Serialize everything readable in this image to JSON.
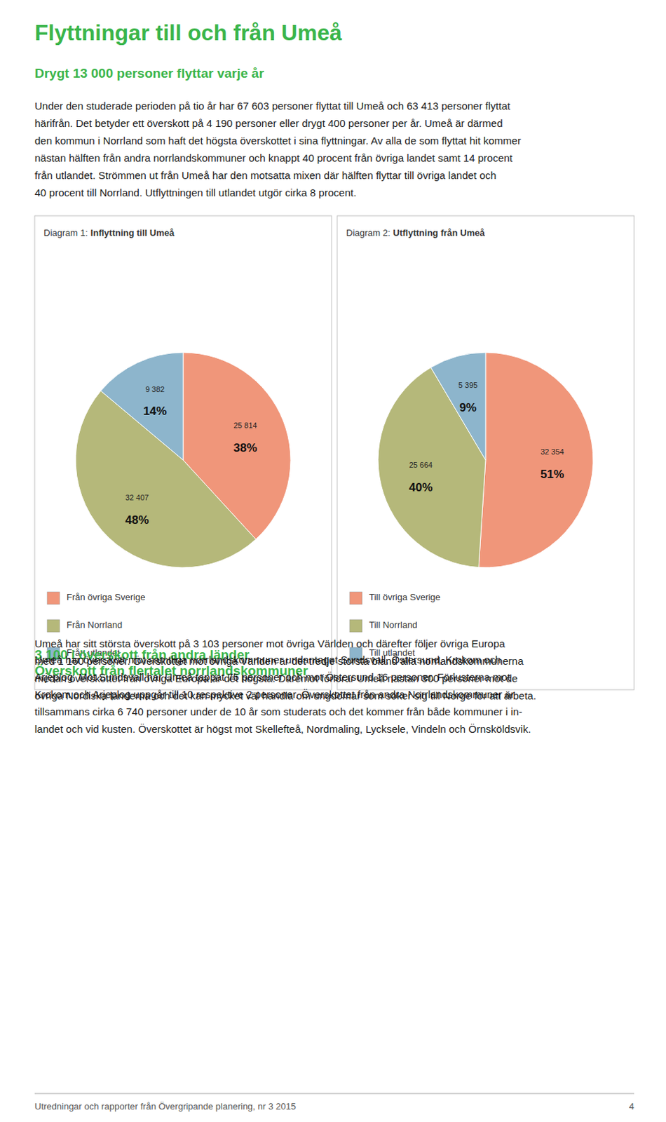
{
  "page": {
    "title": "Flyttningar till och från Umeå",
    "subtitle": "Drygt 13 000 personer flyttar varje år",
    "accent_color": "#3ab54a",
    "body_text": [
      "Under den studerade perioden på tio år har 67 603 personer flyttat till Umeå och 63 413 personer flyttat",
      "härifrån. Det betyder ett överskott på 4 190 personer eller drygt 400 personer per år. Umeå är därmed",
      "den kommun i Norrland som haft det högsta överskottet i sina flyttningar. Av alla de som flyttat hit kommer",
      "nästan hälften från andra norrlandskommuner och knappt 40 procent från övriga landet samt 14 procent",
      "från utlandet. Strömmen ut från Umeå har den motsatta mixen där hälften flyttar till övriga landet och",
      "40 procent till Norrland. Utflyttningen till utlandet utgör cirka 8 procent."
    ],
    "sections": [
      {
        "title": "3 100 i överskott från andra länder",
        "text": [
          "Umeå har sitt största överskott på 3 103 personer mot övriga Världen och därefter följer övriga Europa",
          "med 1 160 personer. Överskottet mot övriga Världen är det tredje största bland alla norrlandskommunerna",
          "medan överskottet från övriga Europa är det högsta. Däremot förlorar Umeå nästan 300 personer mot de",
          "övriga Nordiska länderna och det kan mycket väl handla om ungdomar som söker sig till Norge för att arbeta."
        ]
      },
      {
        "title": "Överskott från flertalet norrlandskommuner",
        "text": [
          "Umeå har överskott mot samtliga norrlandskommuner undantaget Sundsvall, Östersund, Krokom och",
          "Arjeplog. Mot Sundsvall har Umeå tappat 75 personer och mot Östersund 16 personer. Förlusterna mot",
          "Krokom och Arjeplog uppgår till 10 respektive 2 personer. Överskottet från andra Norrlandskommuner är",
          "tillsammans cirka 6 740 personer under de 10 år som studerats och det kommer från både kommuner i in-",
          "landet och vid kusten. Överskottet är högst mot Skellefteå, Nordmaling, Lycksele, Vindeln och Örnsköldsvik."
        ]
      }
    ],
    "footer_text": "Utredningar och rapporter från Övergripande planering, nr 3 2015",
    "footer_page": "4"
  },
  "chart_data": [
    {
      "type": "pie",
      "title_prefix": "Diagram 1:",
      "title": "Inflyttning till Umeå",
      "categories": [
        "Från övriga Sverige",
        "Från Norrland",
        "Från utlandet"
      ],
      "values": [
        25814,
        32407,
        9382
      ],
      "value_labels": [
        "25 814",
        "32 407",
        "9 382"
      ],
      "shares": [
        38,
        48,
        14
      ],
      "share_labels": [
        "38%",
        "48%",
        "14%"
      ],
      "colors": [
        "#f0967a",
        "#b5b87a",
        "#8db5cc"
      ],
      "data_labels": true,
      "legend": "bottom"
    },
    {
      "type": "pie",
      "title_prefix": "Diagram 2:",
      "title": "Utflyttning från Umeå",
      "categories": [
        "Till övriga Sverige",
        "Till Norrland",
        "Till utlandet"
      ],
      "values": [
        32354,
        25664,
        5395
      ],
      "value_labels": [
        "32 354",
        "25 664",
        "5 395"
      ],
      "shares": [
        51,
        40,
        9
      ],
      "share_labels": [
        "51%",
        "40%",
        "9%"
      ],
      "colors": [
        "#f0967a",
        "#b5b87a",
        "#8db5cc"
      ],
      "data_labels": true,
      "legend": "bottom"
    }
  ]
}
